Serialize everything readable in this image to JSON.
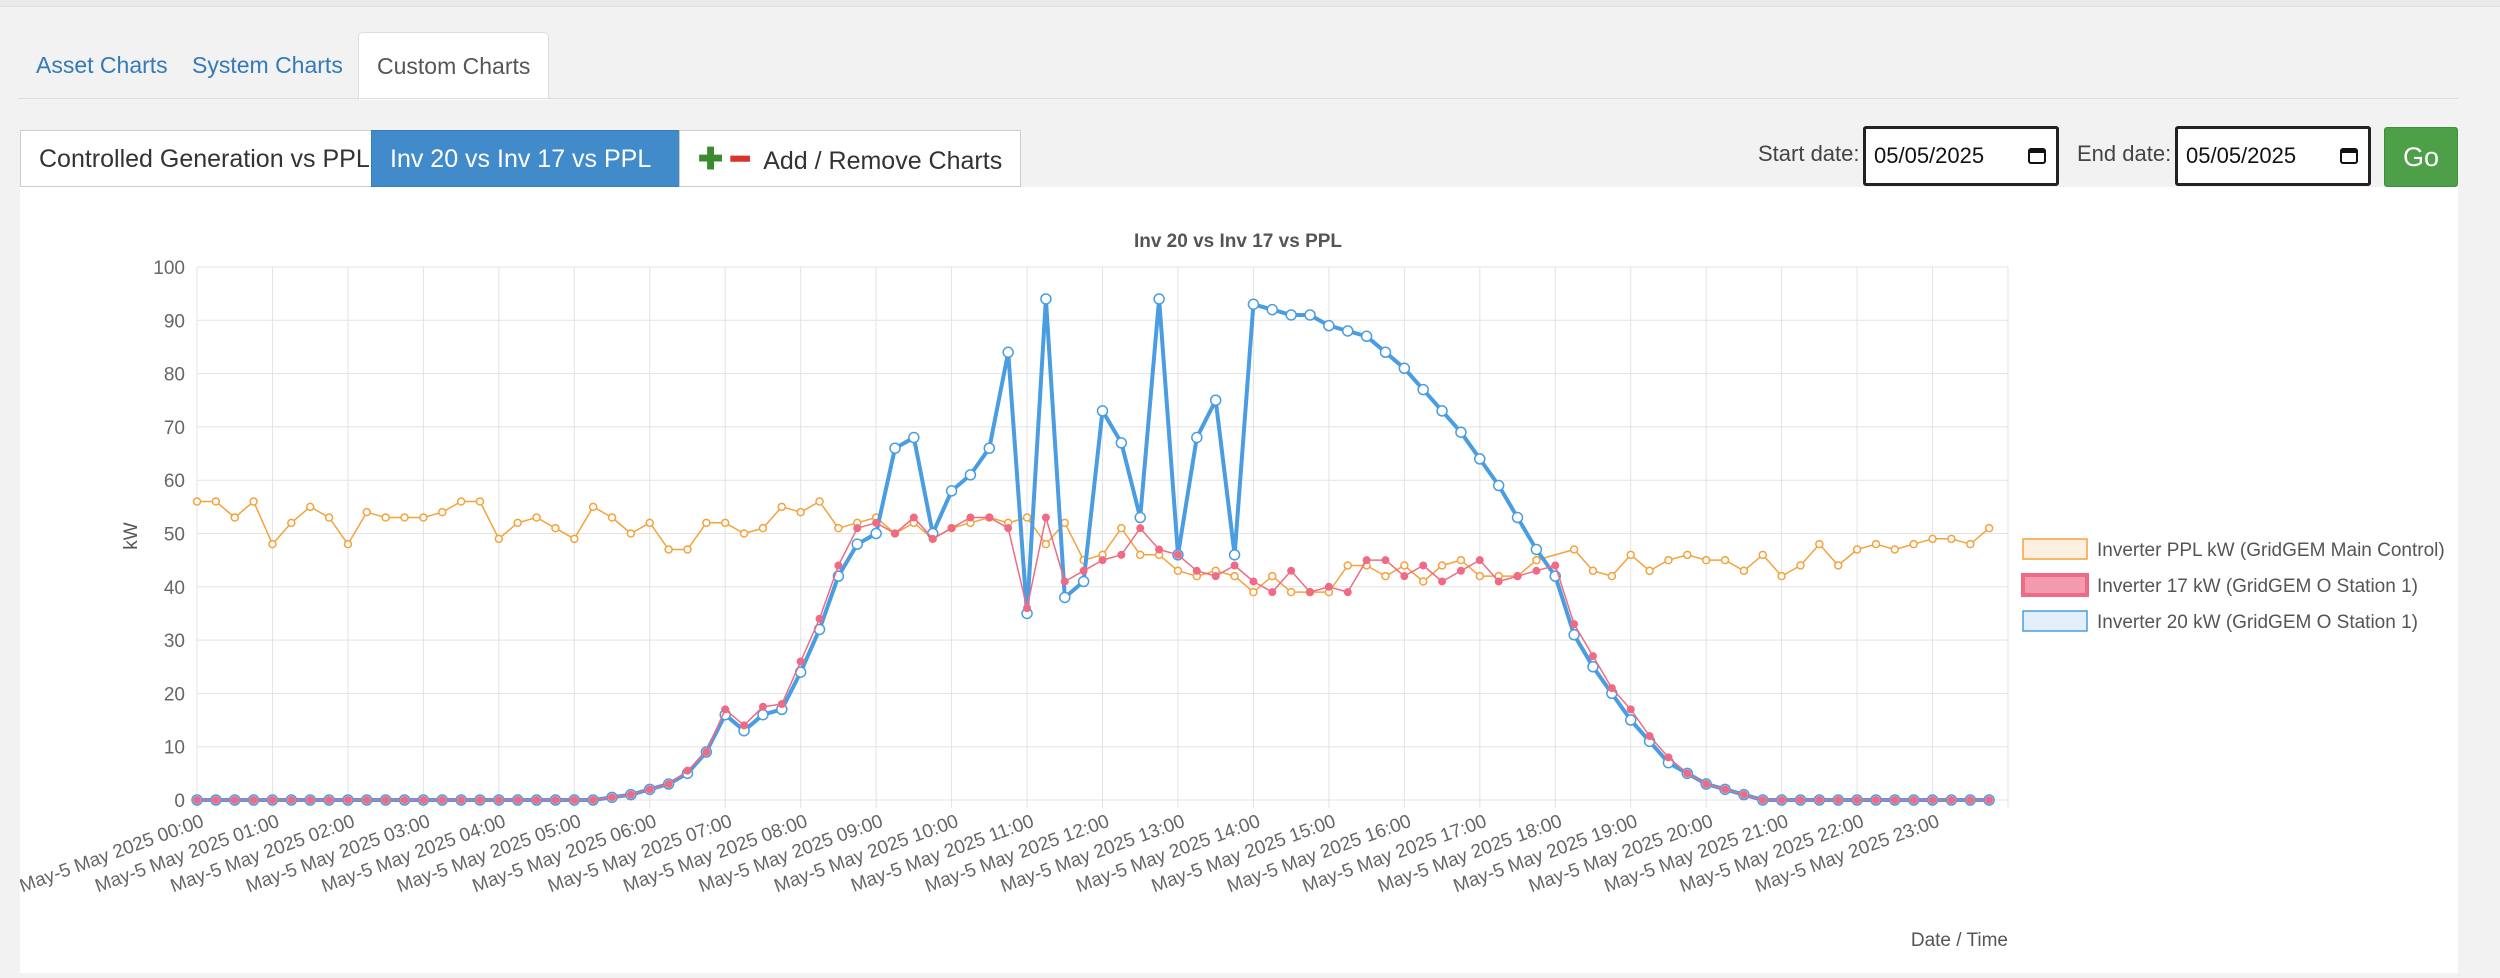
{
  "tabs": [
    {
      "label": "Asset Charts",
      "active": false
    },
    {
      "label": "System Charts",
      "active": false
    },
    {
      "label": "Custom Charts",
      "active": true
    }
  ],
  "chart_buttons": {
    "controlled": "Controlled Generation vs PPL",
    "inv": "Inv 20 vs Inv 17 vs PPL",
    "add_remove": "Add / Remove Charts"
  },
  "dates": {
    "start_label": "Start date:",
    "start_value": "05/05/2025",
    "end_label": "End date:",
    "end_value": "05/05/2025",
    "go": "Go"
  },
  "chart_data": {
    "type": "line",
    "title": "Inv 20 vs Inv 17 vs PPL",
    "xlabel": "Date / Time",
    "ylabel": "kW",
    "ylim": [
      0,
      100
    ],
    "yticks": [
      0,
      10,
      20,
      30,
      40,
      50,
      60,
      70,
      80,
      90,
      100
    ],
    "grid": true,
    "legend_position": "right",
    "x_tick_labels": [
      "May-5 May 2025 00:00",
      "May-5 May 2025 01:00",
      "May-5 May 2025 02:00",
      "May-5 May 2025 03:00",
      "May-5 May 2025 04:00",
      "May-5 May 2025 05:00",
      "May-5 May 2025 06:00",
      "May-5 May 2025 07:00",
      "May-5 May 2025 08:00",
      "May-5 May 2025 09:00",
      "May-5 May 2025 10:00",
      "May-5 May 2025 11:00",
      "May-5 May 2025 12:00",
      "May-5 May 2025 13:00",
      "May-5 May 2025 14:00",
      "May-5 May 2025 15:00",
      "May-5 May 2025 16:00",
      "May-5 May 2025 17:00",
      "May-5 May 2025 18:00",
      "May-5 May 2025 19:00",
      "May-5 May 2025 20:00",
      "May-5 May 2025 21:00",
      "May-5 May 2025 22:00",
      "May-5 May 2025 23:00"
    ],
    "series": [
      {
        "name": "Inverter PPL kW (GridGEM Main Control)",
        "color": "#f5a23c",
        "points": [
          [
            0,
            56
          ],
          [
            0.25,
            56
          ],
          [
            0.5,
            53
          ],
          [
            0.75,
            56
          ],
          [
            1,
            48
          ],
          [
            1.25,
            52
          ],
          [
            1.5,
            55
          ],
          [
            1.75,
            53
          ],
          [
            2,
            48
          ],
          [
            2.25,
            54
          ],
          [
            2.5,
            53
          ],
          [
            2.75,
            53
          ],
          [
            3,
            53
          ],
          [
            3.25,
            54
          ],
          [
            3.5,
            56
          ],
          [
            3.75,
            56
          ],
          [
            4,
            49
          ],
          [
            4.25,
            52
          ],
          [
            4.5,
            53
          ],
          [
            4.75,
            51
          ],
          [
            5,
            49
          ],
          [
            5.25,
            55
          ],
          [
            5.5,
            53
          ],
          [
            5.75,
            50
          ],
          [
            6,
            52
          ],
          [
            6.25,
            47
          ],
          [
            6.5,
            47
          ],
          [
            6.75,
            52
          ],
          [
            7,
            52
          ],
          [
            7.25,
            50
          ],
          [
            7.5,
            51
          ],
          [
            7.75,
            55
          ],
          [
            8,
            54
          ],
          [
            8.25,
            56
          ],
          [
            8.5,
            51
          ],
          [
            8.75,
            52
          ],
          [
            9,
            53
          ],
          [
            9.25,
            50
          ],
          [
            9.5,
            52
          ],
          [
            9.75,
            49
          ],
          [
            10,
            51
          ],
          [
            10.25,
            52
          ],
          [
            10.5,
            53
          ],
          [
            10.75,
            52
          ],
          [
            11,
            53
          ],
          [
            11.25,
            48
          ],
          [
            11.5,
            52
          ],
          [
            11.75,
            45
          ],
          [
            12,
            46
          ],
          [
            12.25,
            51
          ],
          [
            12.5,
            46
          ],
          [
            12.75,
            46
          ],
          [
            13,
            43
          ],
          [
            13.25,
            42
          ],
          [
            13.5,
            43
          ],
          [
            13.75,
            42
          ],
          [
            14,
            39
          ],
          [
            14.25,
            42
          ],
          [
            14.5,
            39
          ],
          [
            14.75,
            39
          ],
          [
            15,
            39
          ],
          [
            15.25,
            44
          ],
          [
            15.5,
            44
          ],
          [
            15.75,
            42
          ],
          [
            16,
            44
          ],
          [
            16.25,
            41
          ],
          [
            16.5,
            44
          ],
          [
            16.75,
            45
          ],
          [
            17,
            42
          ],
          [
            17.25,
            42
          ],
          [
            17.5,
            42
          ],
          [
            17.75,
            45
          ],
          [
            18.25,
            47
          ],
          [
            18.5,
            43
          ],
          [
            18.75,
            42
          ],
          [
            19,
            46
          ],
          [
            19.25,
            43
          ],
          [
            19.5,
            45
          ],
          [
            19.75,
            46
          ],
          [
            20,
            45
          ],
          [
            20.25,
            45
          ],
          [
            20.5,
            43
          ],
          [
            20.75,
            46
          ],
          [
            21,
            42
          ],
          [
            21.25,
            44
          ],
          [
            21.5,
            48
          ],
          [
            21.75,
            44
          ],
          [
            22,
            47
          ],
          [
            22.25,
            48
          ],
          [
            22.5,
            47
          ],
          [
            22.75,
            48
          ],
          [
            23,
            49
          ],
          [
            23.25,
            49
          ],
          [
            23.5,
            48
          ],
          [
            23.75,
            51
          ]
        ]
      },
      {
        "name": "Inverter 17 kW (GridGEM O Station 1)",
        "color": "#ef6b85",
        "points": [
          [
            0,
            0
          ],
          [
            0.25,
            0
          ],
          [
            0.5,
            0
          ],
          [
            0.75,
            0
          ],
          [
            1,
            0
          ],
          [
            1.25,
            0
          ],
          [
            1.5,
            0
          ],
          [
            1.75,
            0
          ],
          [
            2,
            0
          ],
          [
            2.25,
            0
          ],
          [
            2.5,
            0
          ],
          [
            2.75,
            0
          ],
          [
            3,
            0
          ],
          [
            3.25,
            0
          ],
          [
            3.5,
            0
          ],
          [
            3.75,
            0
          ],
          [
            4,
            0
          ],
          [
            4.25,
            0
          ],
          [
            4.5,
            0
          ],
          [
            4.75,
            0
          ],
          [
            5,
            0
          ],
          [
            5.25,
            0
          ],
          [
            5.5,
            0.5
          ],
          [
            5.75,
            1
          ],
          [
            6,
            2
          ],
          [
            6.25,
            3
          ],
          [
            6.5,
            5.5
          ],
          [
            6.75,
            9
          ],
          [
            7,
            17
          ],
          [
            7.25,
            14
          ],
          [
            7.5,
            17.5
          ],
          [
            7.75,
            18
          ],
          [
            8,
            26
          ],
          [
            8.25,
            34
          ],
          [
            8.5,
            44
          ],
          [
            8.75,
            51
          ],
          [
            9,
            52
          ],
          [
            9.25,
            50
          ],
          [
            9.5,
            53
          ],
          [
            9.75,
            49
          ],
          [
            10,
            51
          ],
          [
            10.25,
            53
          ],
          [
            10.5,
            53
          ],
          [
            10.75,
            51
          ],
          [
            11,
            36
          ],
          [
            11.25,
            53
          ],
          [
            11.5,
            41
          ],
          [
            11.75,
            43
          ],
          [
            12,
            45
          ],
          [
            12.25,
            46
          ],
          [
            12.5,
            51
          ],
          [
            12.75,
            47
          ],
          [
            13,
            46
          ],
          [
            13.25,
            43
          ],
          [
            13.5,
            42
          ],
          [
            13.75,
            44
          ],
          [
            14,
            41
          ],
          [
            14.25,
            39
          ],
          [
            14.5,
            43
          ],
          [
            14.75,
            39
          ],
          [
            15,
            40
          ],
          [
            15.25,
            39
          ],
          [
            15.5,
            45
          ],
          [
            15.75,
            45
          ],
          [
            16,
            42
          ],
          [
            16.25,
            44
          ],
          [
            16.5,
            41
          ],
          [
            16.75,
            43
          ],
          [
            17,
            45
          ],
          [
            17.25,
            41
          ],
          [
            17.5,
            42
          ],
          [
            17.75,
            43
          ],
          [
            18,
            44
          ],
          [
            18.25,
            33
          ],
          [
            18.5,
            27
          ],
          [
            18.75,
            21
          ],
          [
            19,
            17
          ],
          [
            19.25,
            12
          ],
          [
            19.5,
            8
          ],
          [
            19.75,
            5
          ],
          [
            20,
            3
          ],
          [
            20.25,
            2
          ],
          [
            20.5,
            1
          ],
          [
            20.75,
            0
          ],
          [
            21,
            0
          ],
          [
            21.25,
            0
          ],
          [
            21.5,
            0
          ],
          [
            21.75,
            0
          ],
          [
            22,
            0
          ],
          [
            22.25,
            0
          ],
          [
            22.5,
            0
          ],
          [
            22.75,
            0
          ],
          [
            23,
            0
          ],
          [
            23.25,
            0
          ],
          [
            23.5,
            0
          ],
          [
            23.75,
            0
          ]
        ]
      },
      {
        "name": "Inverter 20 kW (GridGEM O Station 1)",
        "color": "#4a9de0",
        "points": [
          [
            0,
            0
          ],
          [
            0.25,
            0
          ],
          [
            0.5,
            0
          ],
          [
            0.75,
            0
          ],
          [
            1,
            0
          ],
          [
            1.25,
            0
          ],
          [
            1.5,
            0
          ],
          [
            1.75,
            0
          ],
          [
            2,
            0
          ],
          [
            2.25,
            0
          ],
          [
            2.5,
            0
          ],
          [
            2.75,
            0
          ],
          [
            3,
            0
          ],
          [
            3.25,
            0
          ],
          [
            3.5,
            0
          ],
          [
            3.75,
            0
          ],
          [
            4,
            0
          ],
          [
            4.25,
            0
          ],
          [
            4.5,
            0
          ],
          [
            4.75,
            0
          ],
          [
            5,
            0
          ],
          [
            5.25,
            0
          ],
          [
            5.5,
            0.5
          ],
          [
            5.75,
            1
          ],
          [
            6,
            2
          ],
          [
            6.25,
            3
          ],
          [
            6.5,
            5
          ],
          [
            6.75,
            9
          ],
          [
            7,
            16
          ],
          [
            7.25,
            13
          ],
          [
            7.5,
            16
          ],
          [
            7.75,
            17
          ],
          [
            8,
            24
          ],
          [
            8.25,
            32
          ],
          [
            8.5,
            42
          ],
          [
            8.75,
            48
          ],
          [
            9,
            50
          ],
          [
            9.25,
            66
          ],
          [
            9.5,
            68
          ],
          [
            9.75,
            50
          ],
          [
            10,
            58
          ],
          [
            10.25,
            61
          ],
          [
            10.5,
            66
          ],
          [
            10.75,
            84
          ],
          [
            11,
            35
          ],
          [
            11.25,
            94
          ],
          [
            11.5,
            38
          ],
          [
            11.75,
            41
          ],
          [
            12,
            73
          ],
          [
            12.25,
            67
          ],
          [
            12.5,
            53
          ],
          [
            12.75,
            94
          ],
          [
            13,
            46
          ],
          [
            13.25,
            68
          ],
          [
            13.5,
            75
          ],
          [
            13.75,
            46
          ],
          [
            14,
            93
          ],
          [
            14.25,
            92
          ],
          [
            14.5,
            91
          ],
          [
            14.75,
            91
          ],
          [
            15,
            89
          ],
          [
            15.25,
            88
          ],
          [
            15.5,
            87
          ],
          [
            15.75,
            84
          ],
          [
            16,
            81
          ],
          [
            16.25,
            77
          ],
          [
            16.5,
            73
          ],
          [
            16.75,
            69
          ],
          [
            17,
            64
          ],
          [
            17.25,
            59
          ],
          [
            17.5,
            53
          ],
          [
            17.75,
            47
          ],
          [
            18,
            42
          ],
          [
            18.25,
            31
          ],
          [
            18.5,
            25
          ],
          [
            18.75,
            20
          ],
          [
            19,
            15
          ],
          [
            19.25,
            11
          ],
          [
            19.5,
            7
          ],
          [
            19.75,
            5
          ],
          [
            20,
            3
          ],
          [
            20.25,
            2
          ],
          [
            20.5,
            1
          ],
          [
            20.75,
            0
          ],
          [
            21,
            0
          ],
          [
            21.25,
            0
          ],
          [
            21.5,
            0
          ],
          [
            21.75,
            0
          ],
          [
            22,
            0
          ],
          [
            22.25,
            0
          ],
          [
            22.5,
            0
          ],
          [
            22.75,
            0
          ],
          [
            23,
            0
          ],
          [
            23.25,
            0
          ],
          [
            23.5,
            0
          ],
          [
            23.75,
            0
          ]
        ]
      }
    ]
  }
}
